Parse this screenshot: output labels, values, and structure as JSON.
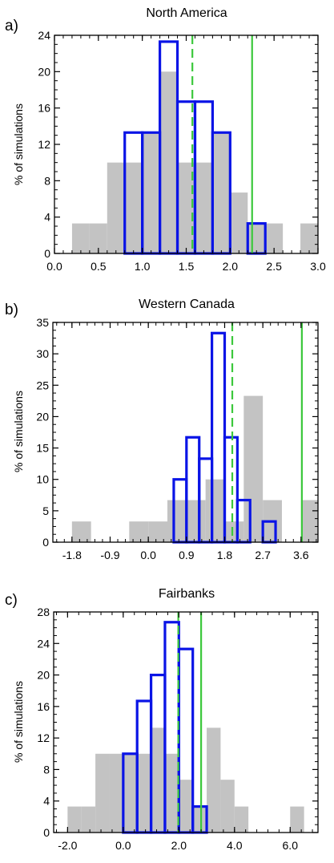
{
  "colors": {
    "gray_fill": "#c3c3c3",
    "blue_outline": "#0a14e6",
    "green_line": "#3cc83c",
    "axis": "#000000"
  },
  "chart_data": [
    {
      "type": "bar",
      "panel_label": "a)",
      "title": "North America",
      "ylabel": "% of simulations",
      "xlabel": "",
      "xlim": [
        0.0,
        3.0
      ],
      "ylim": [
        0,
        24
      ],
      "x_ticks": [
        0.0,
        0.5,
        1.0,
        1.5,
        2.0,
        2.5,
        3.0
      ],
      "x_tick_labels": [
        "0.0",
        "0.5",
        "1.0",
        "1.5",
        "2.0",
        "2.5",
        "3.0"
      ],
      "y_ticks": [
        0,
        4,
        8,
        12,
        16,
        20,
        24
      ],
      "y_tick_labels": [
        "0",
        "4",
        "8",
        "12",
        "16",
        "20",
        "24"
      ],
      "grid": false,
      "series": [
        {
          "style": "filled",
          "bins": [
            [
              0.2,
              0.4
            ],
            [
              0.4,
              0.6
            ],
            [
              0.6,
              0.8
            ],
            [
              0.8,
              1.0
            ],
            [
              1.0,
              1.2
            ],
            [
              1.2,
              1.4
            ],
            [
              1.4,
              1.6
            ],
            [
              1.6,
              1.8
            ],
            [
              1.8,
              2.0
            ],
            [
              2.0,
              2.2
            ],
            [
              2.2,
              2.4
            ],
            [
              2.4,
              2.6
            ],
            [
              2.8,
              3.0
            ]
          ],
          "values": [
            3.3,
            3.3,
            10,
            10,
            13.3,
            20,
            10,
            10,
            13.3,
            6.7,
            3.3,
            3.3,
            3.3
          ]
        },
        {
          "style": "outline",
          "bins": [
            [
              0.8,
              1.0
            ],
            [
              1.0,
              1.2
            ],
            [
              1.2,
              1.4
            ],
            [
              1.4,
              1.6
            ],
            [
              1.6,
              1.8
            ],
            [
              1.8,
              2.0
            ],
            [
              2.2,
              2.4
            ]
          ],
          "values": [
            13.3,
            13.3,
            23.3,
            16.7,
            16.7,
            13.3,
            3.3
          ]
        }
      ],
      "vlines": [
        {
          "x": 1.57,
          "style": "dashed"
        },
        {
          "x": 2.25,
          "style": "solid"
        }
      ]
    },
    {
      "type": "bar",
      "panel_label": "b)",
      "title": "Western Canada",
      "ylabel": "% of simulations",
      "xlabel": "",
      "xlim": [
        -2.25,
        4.0
      ],
      "ylim": [
        0,
        35
      ],
      "x_ticks": [
        -1.8,
        -0.9,
        0.0,
        0.9,
        1.8,
        2.7,
        3.6
      ],
      "x_tick_labels": [
        "-1.8",
        "-0.9",
        "0.0",
        "0.9",
        "1.8",
        "2.7",
        "3.6"
      ],
      "y_ticks": [
        0,
        5,
        10,
        15,
        20,
        25,
        30,
        35
      ],
      "y_tick_labels": [
        "0",
        "5",
        "10",
        "15",
        "20",
        "25",
        "30",
        "35"
      ],
      "grid": false,
      "series": [
        {
          "style": "filled",
          "bins": [
            [
              -1.8,
              -1.35
            ],
            [
              -0.45,
              0.0
            ],
            [
              0.0,
              0.45
            ],
            [
              0.45,
              0.9
            ],
            [
              0.9,
              1.35
            ],
            [
              1.35,
              1.8
            ],
            [
              1.8,
              2.25
            ],
            [
              2.25,
              2.7
            ],
            [
              2.7,
              3.15
            ],
            [
              3.6,
              4.0
            ]
          ],
          "values": [
            3.3,
            3.3,
            3.3,
            6.7,
            6.7,
            10,
            3.3,
            23.3,
            6.7,
            6.7
          ]
        },
        {
          "style": "outline",
          "bins": [
            [
              0.6,
              0.9
            ],
            [
              0.9,
              1.2
            ],
            [
              1.2,
              1.5
            ],
            [
              1.5,
              1.8
            ],
            [
              1.8,
              2.1
            ],
            [
              2.1,
              2.4
            ],
            [
              2.7,
              3.0
            ]
          ],
          "values": [
            10,
            16.7,
            13.3,
            33.3,
            16.7,
            6.7,
            3.3
          ]
        }
      ],
      "vlines": [
        {
          "x": 1.98,
          "style": "dashed"
        },
        {
          "x": 3.62,
          "style": "solid"
        }
      ]
    },
    {
      "type": "bar",
      "panel_label": "c)",
      "title": "Fairbanks",
      "ylabel": "% of simulations",
      "xlabel": "",
      "xlim": [
        -2.5,
        7.0
      ],
      "ylim": [
        0,
        28
      ],
      "x_ticks": [
        -2.0,
        0.0,
        2.0,
        4.0,
        6.0
      ],
      "x_tick_labels": [
        "-2.0",
        "0.0",
        "2.0",
        "4.0",
        "6.0"
      ],
      "y_ticks": [
        0,
        4,
        8,
        12,
        16,
        20,
        24,
        28
      ],
      "y_tick_labels": [
        "0",
        "4",
        "8",
        "12",
        "16",
        "20",
        "24",
        "28"
      ],
      "grid": false,
      "series": [
        {
          "style": "filled",
          "bins": [
            [
              -2.0,
              -1.5
            ],
            [
              -1.5,
              -1.0
            ],
            [
              -1.0,
              -0.5
            ],
            [
              -0.5,
              0.0
            ],
            [
              0.0,
              0.5
            ],
            [
              0.5,
              1.0
            ],
            [
              1.0,
              1.5
            ],
            [
              1.5,
              2.0
            ],
            [
              2.0,
              2.5
            ],
            [
              2.5,
              3.0
            ],
            [
              3.0,
              3.5
            ],
            [
              3.5,
              4.0
            ],
            [
              4.0,
              4.5
            ],
            [
              6.0,
              6.5
            ]
          ],
          "values": [
            3.3,
            3.3,
            10,
            10,
            10,
            10,
            13.3,
            10,
            6.7,
            3.3,
            13.3,
            6.7,
            3.3,
            3.3
          ]
        },
        {
          "style": "outline",
          "bins": [
            [
              0.0,
              0.5
            ],
            [
              0.5,
              1.0
            ],
            [
              1.0,
              1.5
            ],
            [
              1.5,
              2.0
            ],
            [
              2.0,
              2.5
            ],
            [
              2.5,
              3.0
            ]
          ],
          "values": [
            10,
            16.7,
            20,
            26.7,
            23.3,
            3.3
          ]
        }
      ],
      "vlines": [
        {
          "x": 1.98,
          "style": "dashed"
        },
        {
          "x": 2.8,
          "style": "solid"
        }
      ]
    }
  ]
}
